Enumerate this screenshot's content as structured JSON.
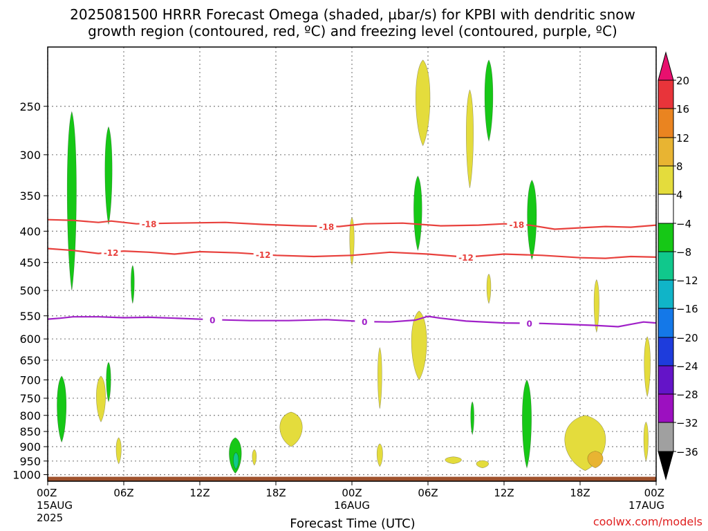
{
  "title": {
    "line1": "2025081500 HRRR Forecast Omega (shaded, µbar/s) for KPBI with dendritic snow",
    "line2": "growth region (contoured, red, ºC) and freezing level (contoured, purple, ºC)"
  },
  "source_label": "coolwx.com/models",
  "chart_data": {
    "type": "heatmap",
    "xlabel": "Forecast Time (UTC)",
    "ylabel": "",
    "x_ticks": [
      {
        "hours": 0,
        "line1": "00Z",
        "line2": "15AUG",
        "line3": "2025"
      },
      {
        "hours": 6,
        "line1": "06Z",
        "line2": "",
        "line3": ""
      },
      {
        "hours": 12,
        "line1": "12Z",
        "line2": "",
        "line3": ""
      },
      {
        "hours": 18,
        "line1": "18Z",
        "line2": "",
        "line3": ""
      },
      {
        "hours": 24,
        "line1": "00Z",
        "line2": "16AUG",
        "line3": ""
      },
      {
        "hours": 30,
        "line1": "06Z",
        "line2": "",
        "line3": ""
      },
      {
        "hours": 36,
        "line1": "12Z",
        "line2": "",
        "line3": ""
      },
      {
        "hours": 42,
        "line1": "18Z",
        "line2": "",
        "line3": ""
      },
      {
        "hours": 48,
        "line1": "00Z",
        "line2": "17AUG",
        "line3": ""
      }
    ],
    "xlim_hours": [
      0,
      48
    ],
    "y_ticks_hpa": [
      250,
      300,
      350,
      400,
      450,
      500,
      550,
      600,
      650,
      700,
      750,
      800,
      850,
      900,
      950,
      1000
    ],
    "y_tick_labels": [
      "250",
      "300",
      "350",
      "400",
      "450",
      "500",
      "550",
      "600",
      "650",
      "700",
      "750",
      "800",
      "850",
      "900",
      "950",
      "1000"
    ],
    "ylim_hpa": [
      200,
      1025
    ],
    "y_scale": "log-pressure",
    "grid": true,
    "colorbar": {
      "labels": [
        "20",
        "16",
        "12",
        "8",
        "4",
        "−4",
        "−8",
        "−12",
        "−16",
        "−20",
        "−24",
        "−28",
        "−32",
        "−36"
      ],
      "colors": [
        "#e8106e",
        "#e8343a",
        "#ea8420",
        "#e8b432",
        "#e4dc3c",
        "#ffffff",
        "#16c816",
        "#10c88c",
        "#10b4c8",
        "#1478e8",
        "#1e3cdc",
        "#6414c8",
        "#9c10c0",
        "#a0a0a0",
        "#000000"
      ]
    },
    "contours": {
      "dgz_minus18": {
        "level_label": "-18",
        "color": "#e8403c",
        "hours": [
          0,
          2,
          4,
          5,
          7,
          10,
          14,
          17,
          20,
          23,
          25,
          28,
          31,
          34,
          36,
          38,
          40,
          42,
          44,
          46,
          48
        ],
        "hpa": [
          383,
          384,
          387,
          385,
          389,
          388,
          387,
          390,
          392,
          393,
          389,
          388,
          392,
          391,
          389,
          391,
          397,
          395,
          393,
          394,
          391
        ]
      },
      "dgz_minus12": {
        "level_label": "-12",
        "color": "#e8403c",
        "hours": [
          0,
          2,
          4,
          6,
          8,
          10,
          12,
          15,
          18,
          21,
          24,
          27,
          30,
          33,
          36,
          39,
          42,
          44,
          46,
          48
        ],
        "hpa": [
          427,
          430,
          435,
          431,
          433,
          436,
          432,
          434,
          438,
          440,
          438,
          433,
          436,
          441,
          436,
          438,
          442,
          443,
          440,
          441
        ]
      },
      "freezing_zero": {
        "level_label": "0",
        "color": "#a020c8",
        "hours": [
          0,
          1,
          2,
          4,
          6,
          8,
          10,
          13,
          16,
          19,
          22,
          25,
          27,
          29,
          30,
          31,
          33,
          36,
          39,
          41,
          43,
          45,
          46,
          47,
          48
        ],
        "hpa": [
          557,
          555,
          552,
          552,
          554,
          553,
          555,
          558,
          560,
          560,
          558,
          562,
          563,
          559,
          551,
          555,
          561,
          565,
          566,
          568,
          570,
          573,
          568,
          563,
          565
        ]
      }
    },
    "contour_label_positions": {
      "dgz_minus18": [
        8,
        22,
        37
      ],
      "dgz_minus12": [
        5,
        17,
        33
      ],
      "freezing_zero": [
        13,
        25,
        38
      ]
    },
    "omega_cells": [
      {
        "hour": 1.9,
        "p_top": 255,
        "p_bot": 500,
        "halfwidth_h": 0.45,
        "value": -6
      },
      {
        "hour": 4.8,
        "p_top": 270,
        "p_bot": 390,
        "halfwidth_h": 0.35,
        "value": -6
      },
      {
        "hour": 6.7,
        "p_top": 455,
        "p_bot": 525,
        "halfwidth_h": 0.15,
        "value": -6
      },
      {
        "hour": 1.1,
        "p_top": 690,
        "p_bot": 885,
        "halfwidth_h": 0.45,
        "value": -6
      },
      {
        "hour": 4.8,
        "p_top": 655,
        "p_bot": 760,
        "halfwidth_h": 0.22,
        "value": -6
      },
      {
        "hour": 4.2,
        "p_top": 690,
        "p_bot": 820,
        "halfwidth_h": 0.45,
        "value": 5
      },
      {
        "hour": 5.6,
        "p_top": 870,
        "p_bot": 960,
        "halfwidth_h": 0.25,
        "value": 5
      },
      {
        "hour": 14.8,
        "p_top": 870,
        "p_bot": 995,
        "halfwidth_h": 0.6,
        "value": -6
      },
      {
        "hour": 14.85,
        "p_top": 920,
        "p_bot": 980,
        "halfwidth_h": 0.25,
        "value": -10
      },
      {
        "hour": 16.3,
        "p_top": 910,
        "p_bot": 965,
        "halfwidth_h": 0.2,
        "value": 5
      },
      {
        "hour": 19.2,
        "p_top": 790,
        "p_bot": 900,
        "halfwidth_h": 1.1,
        "value": 5
      },
      {
        "hour": 26.2,
        "p_top": 620,
        "p_bot": 780,
        "halfwidth_h": 0.2,
        "value": 5
      },
      {
        "hour": 26.2,
        "p_top": 890,
        "p_bot": 970,
        "halfwidth_h": 0.28,
        "value": 5
      },
      {
        "hour": 24.0,
        "p_top": 380,
        "p_bot": 455,
        "halfwidth_h": 0.22,
        "value": 5
      },
      {
        "hour": 29.2,
        "p_top": 325,
        "p_bot": 430,
        "halfwidth_h": 0.4,
        "value": -6
      },
      {
        "hour": 29.6,
        "p_top": 210,
        "p_bot": 290,
        "halfwidth_h": 0.7,
        "value": 5
      },
      {
        "hour": 29.3,
        "p_top": 540,
        "p_bot": 700,
        "halfwidth_h": 0.75,
        "value": 5
      },
      {
        "hour": 33.3,
        "p_top": 235,
        "p_bot": 340,
        "halfwidth_h": 0.35,
        "value": 5
      },
      {
        "hour": 34.8,
        "p_top": 210,
        "p_bot": 285,
        "halfwidth_h": 0.4,
        "value": -6
      },
      {
        "hour": 34.8,
        "p_top": 470,
        "p_bot": 525,
        "halfwidth_h": 0.2,
        "value": 5
      },
      {
        "hour": 33.5,
        "p_top": 760,
        "p_bot": 860,
        "halfwidth_h": 0.15,
        "value": -6
      },
      {
        "hour": 38.2,
        "p_top": 330,
        "p_bot": 445,
        "halfwidth_h": 0.45,
        "value": -6
      },
      {
        "hour": 37.8,
        "p_top": 700,
        "p_bot": 975,
        "halfwidth_h": 0.45,
        "value": -6
      },
      {
        "hour": 32.0,
        "p_top": 935,
        "p_bot": 960,
        "halfwidth_h": 0.8,
        "value": 5
      },
      {
        "hour": 34.3,
        "p_top": 948,
        "p_bot": 975,
        "halfwidth_h": 0.6,
        "value": 5
      },
      {
        "hour": 42.4,
        "p_top": 800,
        "p_bot": 985,
        "halfwidth_h": 2.0,
        "value": 6
      },
      {
        "hour": 43.2,
        "p_top": 915,
        "p_bot": 975,
        "halfwidth_h": 0.75,
        "value": 9
      },
      {
        "hour": 43.3,
        "p_top": 480,
        "p_bot": 585,
        "halfwidth_h": 0.25,
        "value": 5
      },
      {
        "hour": 47.3,
        "p_top": 595,
        "p_bot": 745,
        "halfwidth_h": 0.3,
        "value": 5
      },
      {
        "hour": 47.2,
        "p_top": 820,
        "p_bot": 950,
        "halfwidth_h": 0.22,
        "value": 5
      }
    ],
    "ground": {
      "p_top": 1008,
      "color": "#a0522d"
    }
  }
}
